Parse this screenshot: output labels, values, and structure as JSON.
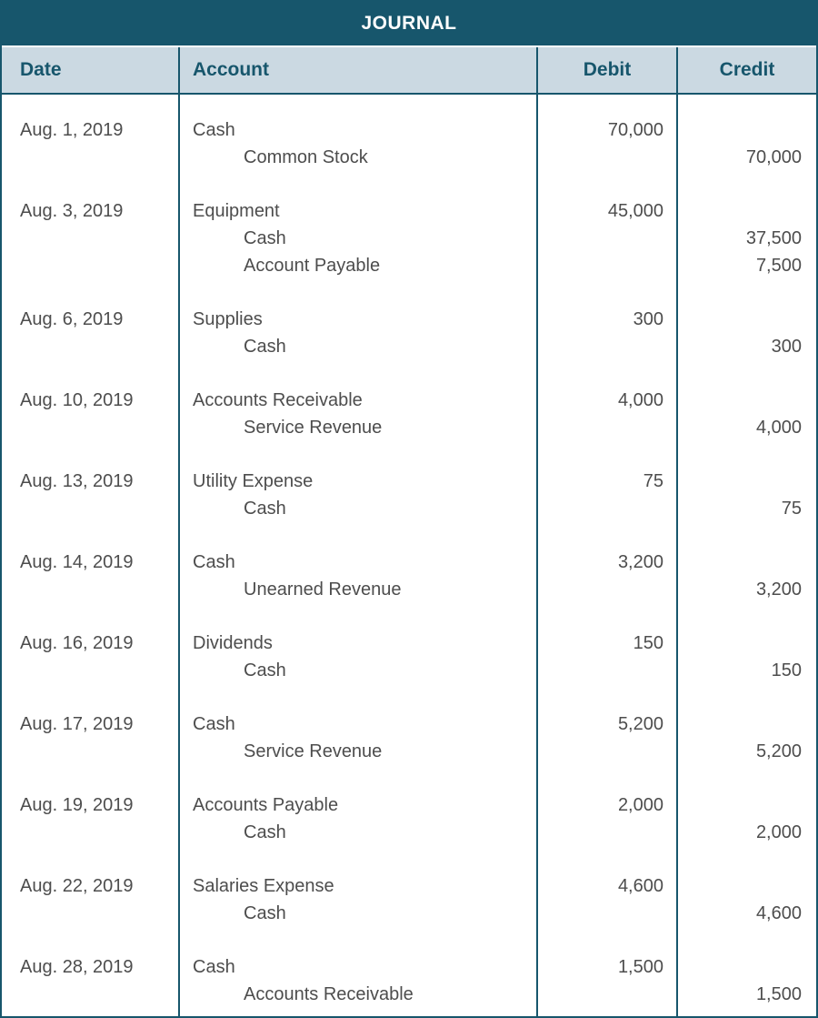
{
  "title": "JOURNAL",
  "columns": {
    "date": "Date",
    "account": "Account",
    "debit": "Debit",
    "credit": "Credit"
  },
  "colors": {
    "header_bg": "#17566C",
    "header_text": "#FFFFFF",
    "subheader_bg": "#CBD9E2",
    "subheader_text": "#17566C",
    "border": "#17566C",
    "body_text": "#4D4D4D"
  },
  "entries": [
    {
      "date": "Aug. 1, 2019",
      "lines": [
        {
          "account": "Cash",
          "indent": false,
          "debit": "70,000",
          "credit": ""
        },
        {
          "account": "Common Stock",
          "indent": true,
          "debit": "",
          "credit": "70,000"
        }
      ]
    },
    {
      "date": "Aug. 3, 2019",
      "lines": [
        {
          "account": "Equipment",
          "indent": false,
          "debit": "45,000",
          "credit": ""
        },
        {
          "account": "Cash",
          "indent": true,
          "debit": "",
          "credit": "37,500"
        },
        {
          "account": "Account Payable",
          "indent": true,
          "debit": "",
          "credit": "7,500"
        }
      ]
    },
    {
      "date": "Aug. 6, 2019",
      "lines": [
        {
          "account": "Supplies",
          "indent": false,
          "debit": "300",
          "credit": ""
        },
        {
          "account": "Cash",
          "indent": true,
          "debit": "",
          "credit": "300"
        }
      ]
    },
    {
      "date": "Aug. 10, 2019",
      "lines": [
        {
          "account": "Accounts Receivable",
          "indent": false,
          "debit": "4,000",
          "credit": ""
        },
        {
          "account": "Service Revenue",
          "indent": true,
          "debit": "",
          "credit": "4,000"
        }
      ]
    },
    {
      "date": "Aug. 13, 2019",
      "lines": [
        {
          "account": "Utility Expense",
          "indent": false,
          "debit": "75",
          "credit": ""
        },
        {
          "account": "Cash",
          "indent": true,
          "debit": "",
          "credit": "75"
        }
      ]
    },
    {
      "date": "Aug. 14, 2019",
      "lines": [
        {
          "account": "Cash",
          "indent": false,
          "debit": "3,200",
          "credit": ""
        },
        {
          "account": "Unearned Revenue",
          "indent": true,
          "debit": "",
          "credit": "3,200"
        }
      ]
    },
    {
      "date": "Aug. 16, 2019",
      "lines": [
        {
          "account": "Dividends",
          "indent": false,
          "debit": "150",
          "credit": ""
        },
        {
          "account": "Cash",
          "indent": true,
          "debit": "",
          "credit": "150"
        }
      ]
    },
    {
      "date": "Aug. 17, 2019",
      "lines": [
        {
          "account": "Cash",
          "indent": false,
          "debit": "5,200",
          "credit": ""
        },
        {
          "account": "Service Revenue",
          "indent": true,
          "debit": "",
          "credit": "5,200"
        }
      ]
    },
    {
      "date": "Aug. 19, 2019",
      "lines": [
        {
          "account": "Accounts Payable",
          "indent": false,
          "debit": "2,000",
          "credit": ""
        },
        {
          "account": "Cash",
          "indent": true,
          "debit": "",
          "credit": "2,000"
        }
      ]
    },
    {
      "date": "Aug. 22, 2019",
      "lines": [
        {
          "account": "Salaries Expense",
          "indent": false,
          "debit": "4,600",
          "credit": ""
        },
        {
          "account": "Cash",
          "indent": true,
          "debit": "",
          "credit": "4,600"
        }
      ]
    },
    {
      "date": "Aug. 28, 2019",
      "lines": [
        {
          "account": "Cash",
          "indent": false,
          "debit": "1,500",
          "credit": ""
        },
        {
          "account": "Accounts Receivable",
          "indent": true,
          "debit": "",
          "credit": "1,500"
        }
      ]
    }
  ]
}
